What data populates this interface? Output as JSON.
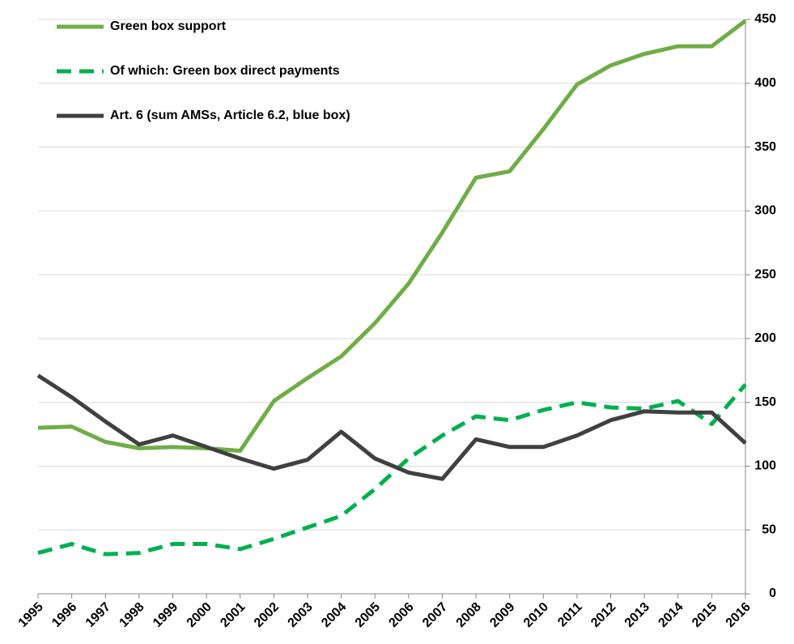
{
  "chart_data": {
    "type": "line",
    "categories": [
      "1995",
      "1996",
      "1997",
      "1998",
      "1999",
      "2000",
      "2001",
      "2002",
      "2003",
      "2004",
      "2005",
      "2006",
      "2007",
      "2008",
      "2009",
      "2010",
      "2011",
      "2012",
      "2013",
      "2014",
      "2015",
      "2016"
    ],
    "series": [
      {
        "name": "Green box support",
        "color": "#70ad47",
        "style": "solid",
        "values": [
          130,
          131,
          119,
          114,
          115,
          114,
          112,
          151,
          169,
          186,
          212,
          243,
          283,
          326,
          331,
          364,
          399,
          414,
          423,
          429,
          429,
          449
        ]
      },
      {
        "name": "Of which: Green box direct payments",
        "color": "#00b050",
        "style": "dashed",
        "values": [
          32,
          39,
          31,
          32,
          39,
          39,
          35,
          43,
          52,
          61,
          82,
          106,
          124,
          139,
          136,
          144,
          150,
          146,
          145,
          151,
          133,
          164
        ]
      },
      {
        "name": "Art. 6 (sum AMSs, Article 6.2, blue box)",
        "color": "#404040",
        "style": "solid",
        "values": [
          171,
          154,
          135,
          117,
          124,
          115,
          106,
          98,
          105,
          127,
          106,
          95,
          90,
          121,
          115,
          115,
          124,
          136,
          143,
          142,
          142,
          118
        ]
      }
    ],
    "ylim": [
      0,
      450
    ],
    "yticks": [
      0,
      50,
      100,
      150,
      200,
      250,
      300,
      350,
      400,
      450
    ],
    "y_axis_side": "right",
    "grid": true,
    "legend": "top-left"
  }
}
